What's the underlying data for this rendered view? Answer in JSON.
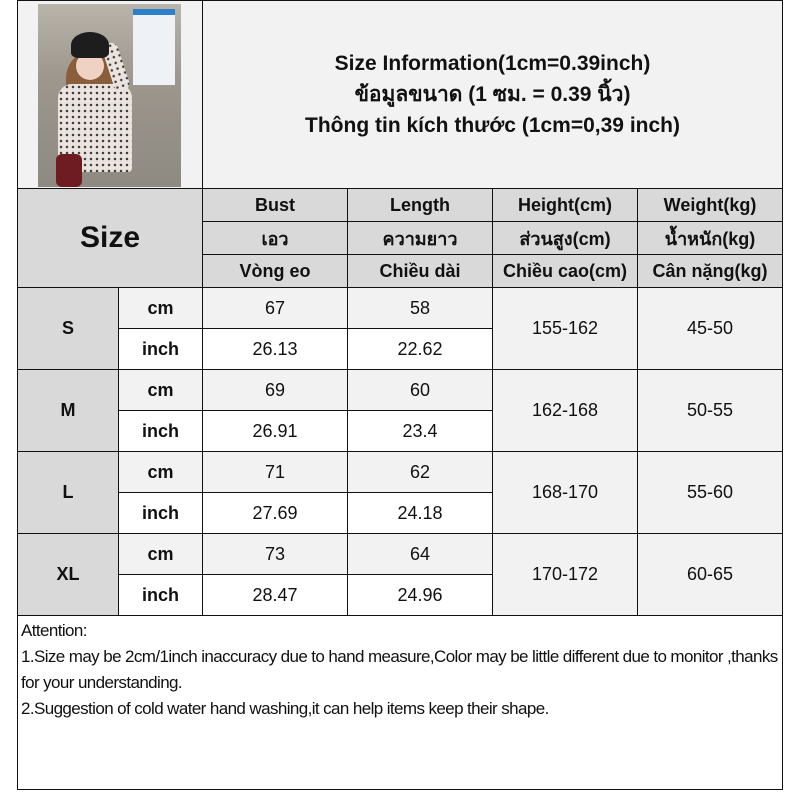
{
  "title": {
    "line1": "Size Information(1cm=0.39inch)",
    "line2": "ข้อมูลขนาด (1 ซม. = 0.39 นิ้ว)",
    "line3": "Thông tin kích thước (1cm=0,39 inch)"
  },
  "photo": {
    "alt": "model-photo"
  },
  "header": {
    "size_label": "Size",
    "columns": [
      {
        "en": "Bust",
        "th": "เอว",
        "vi": "Vòng eo"
      },
      {
        "en": "Length",
        "th": "ความยาว",
        "vi": "Chiều dài"
      },
      {
        "en": "Height(cm)",
        "th": "ส่วนสูง(cm)",
        "vi": "Chiều cao(cm)"
      },
      {
        "en": "Weight(kg)",
        "th": "น้ำหนัก(kg)",
        "vi": "Cân nặng(kg)"
      }
    ]
  },
  "units": {
    "cm": "cm",
    "inch": "inch"
  },
  "rows": [
    {
      "size": "S",
      "cm": {
        "bust": "67",
        "length": "58"
      },
      "inch": {
        "bust": "26.13",
        "length": "22.62"
      },
      "height": "155-162",
      "weight": "45-50"
    },
    {
      "size": "M",
      "cm": {
        "bust": "69",
        "length": "60"
      },
      "inch": {
        "bust": "26.91",
        "length": "23.4"
      },
      "height": "162-168",
      "weight": "50-55"
    },
    {
      "size": "L",
      "cm": {
        "bust": "71",
        "length": "62"
      },
      "inch": {
        "bust": "27.69",
        "length": "24.18"
      },
      "height": "168-170",
      "weight": "55-60"
    },
    {
      "size": "XL",
      "cm": {
        "bust": "73",
        "length": "64"
      },
      "inch": {
        "bust": "28.47",
        "length": "24.96"
      },
      "height": "170-172",
      "weight": "60-65"
    }
  ],
  "notes": {
    "heading": "Attention:",
    "note1": "1.Size may be 2cm/1inch inaccuracy due to hand measure,Color may be little different due to monitor ,thanks for your understanding.",
    "note2": "2.Suggestion of cold water hand washing,it can help items keep their shape."
  },
  "colors": {
    "header_bg": "#d9d9d9",
    "light_bg": "#f2f2f2",
    "border": "#111111"
  }
}
